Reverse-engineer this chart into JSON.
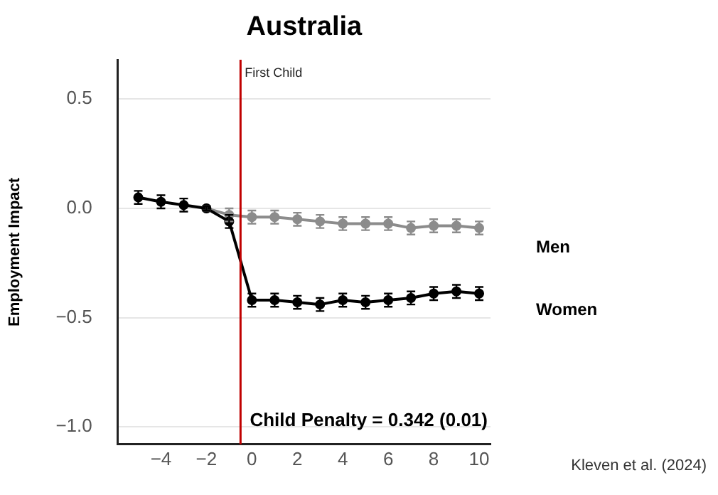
{
  "chart_data": {
    "type": "line",
    "title": "Australia",
    "ylabel": "Employment Impact",
    "x": [
      -5,
      -4,
      -3,
      -2,
      -1,
      0,
      1,
      2,
      3,
      4,
      5,
      6,
      7,
      8,
      9,
      10
    ],
    "series": [
      {
        "name": "Men",
        "color": "#8c8c8c",
        "values": [
          null,
          null,
          null,
          0,
          -0.03,
          -0.04,
          -0.04,
          -0.05,
          -0.06,
          -0.07,
          -0.07,
          -0.07,
          -0.09,
          -0.08,
          -0.08,
          -0.09
        ],
        "errors": [
          null,
          null,
          null,
          0.01,
          0.03,
          0.03,
          0.03,
          0.03,
          0.03,
          0.03,
          0.03,
          0.03,
          0.03,
          0.03,
          0.03,
          0.03
        ]
      },
      {
        "name": "Women",
        "color": "#000000",
        "values": [
          0.05,
          0.03,
          0.015,
          0,
          -0.06,
          -0.42,
          -0.42,
          -0.43,
          -0.44,
          -0.42,
          -0.43,
          -0.42,
          -0.41,
          -0.39,
          -0.38,
          -0.39
        ],
        "errors": [
          0.03,
          0.03,
          0.03,
          0.01,
          0.03,
          0.03,
          0.03,
          0.03,
          0.03,
          0.03,
          0.03,
          0.03,
          0.03,
          0.03,
          0.03,
          0.03
        ]
      }
    ],
    "xlim": [
      -5.9,
      10.5
    ],
    "xticks": [
      {
        "value": -4,
        "label": "−4"
      },
      {
        "value": -2,
        "label": "−2"
      },
      0,
      2,
      4,
      6,
      8,
      10
    ],
    "ylim": [
      -1.08,
      0.68
    ],
    "yticks": [
      {
        "value": -1,
        "label": "−1.0"
      },
      {
        "value": -0.5,
        "label": "−0.5"
      },
      {
        "value": 0,
        "label": "0.0"
      },
      {
        "value": 0.5,
        "label": "0.5"
      }
    ],
    "ref_lines": [
      {
        "axis": "x",
        "value": -0.5,
        "label": "First Child",
        "color": "#c00000"
      }
    ],
    "annotations": [
      "Child Penalty = 0.342 (0.01)",
      "Kleven et al. (2024)"
    ],
    "grid": "y",
    "legend": false,
    "marker": "circle",
    "line_style": "solid"
  }
}
